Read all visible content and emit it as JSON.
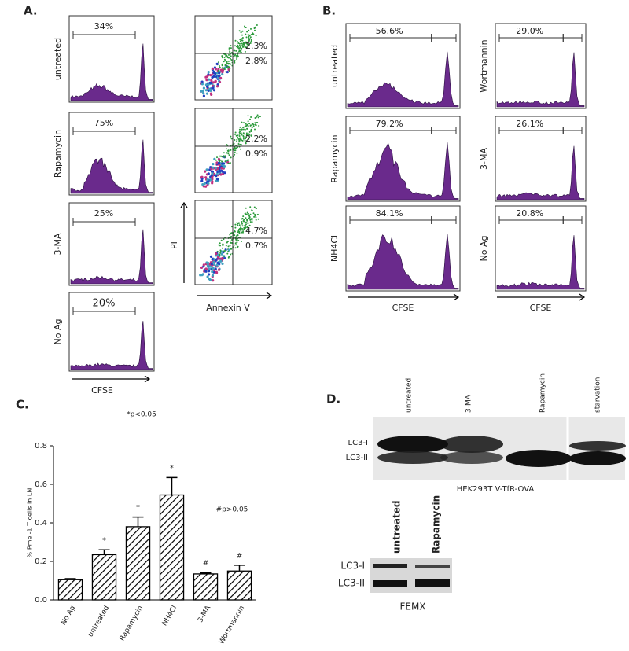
{
  "panel_a": {
    "label": "A.",
    "histograms": [
      {
        "condition": "untreated",
        "percent": "34%"
      },
      {
        "condition": "Rapamycin",
        "percent": "75%"
      },
      {
        "condition": "3-MA",
        "percent": "25%"
      },
      {
        "condition": "No Ag",
        "percent": "20%"
      }
    ],
    "x_label": "CFSE",
    "dot_plots": [
      {
        "upper": "2.3%",
        "lower": "2.8%"
      },
      {
        "upper": "2.2%",
        "lower": "0.9%"
      },
      {
        "upper": "4.7%",
        "lower": "0.7%"
      }
    ],
    "dot_x_label": "Annexin V",
    "dot_y_label": "PI"
  },
  "panel_b": {
    "label": "B.",
    "left": [
      {
        "condition": "untreated",
        "percent": "56.6%"
      },
      {
        "condition": "Rapamycin",
        "percent": "79.2%"
      },
      {
        "condition": "NH4Cl",
        "percent": "84.1%"
      }
    ],
    "right": [
      {
        "condition": "Wortmannin",
        "percent": "29.0%"
      },
      {
        "condition": "3-MA",
        "percent": "26.1%"
      },
      {
        "condition": "No Ag",
        "percent": "20.8%"
      }
    ],
    "x_label": "CFSE"
  },
  "chart_data": {
    "type": "bar",
    "label": "C.",
    "ylabel": "% Pmel-1 T cells in LN",
    "categories": [
      "No Ag",
      "untreated",
      "Rapamycin",
      "NH4Cl",
      "3-MA",
      "Wortmannin"
    ],
    "values": [
      0.105,
      0.235,
      0.38,
      0.545,
      0.135,
      0.15
    ],
    "errors": [
      0.005,
      0.025,
      0.05,
      0.09,
      0.005,
      0.03
    ],
    "significance": [
      null,
      "*",
      "*",
      "*",
      "#",
      "#"
    ],
    "annotations": [
      "*p<0.05",
      "#p>0.05"
    ],
    "ylim": [
      0,
      0.8
    ],
    "yticks": [
      {
        "value": 0,
        "label": "0.0"
      },
      {
        "value": 0.2,
        "label": "0.2"
      },
      {
        "value": 0.4,
        "label": "0.4"
      },
      {
        "value": 0.6,
        "label": "0.6"
      },
      {
        "value": 0.8,
        "label": "0.8"
      }
    ],
    "color": "#000000"
  },
  "panel_d": {
    "label": "D.",
    "lanes": [
      "untreated",
      "3-MA",
      "Rapamycin",
      "starvation"
    ],
    "bands": [
      "LC3-I",
      "LC3-II"
    ],
    "caption": "HEK293T V-TfR-OVA",
    "lanes2": [
      "untreated",
      "Rapamycin"
    ],
    "bands2": [
      "LC3-I",
      "LC3-II"
    ],
    "caption2": "FEMX"
  }
}
